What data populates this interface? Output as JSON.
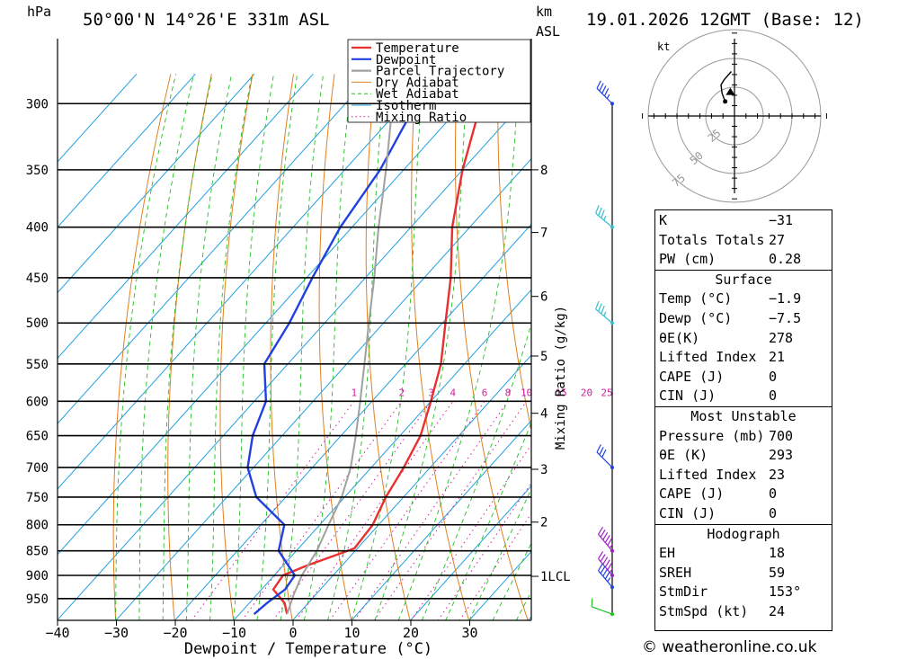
{
  "header": {
    "pressure_unit": "hPa",
    "location": "50°00'N  14°26'E  331m  ASL",
    "km_label": "km",
    "asl_label": "ASL",
    "datetime": "19.01.2026  12GMT  (Base: 12)"
  },
  "chart_data": {
    "type": "skew-t",
    "xlabel": "Dewpoint / Temperature (°C)",
    "ylabel": "hPa",
    "x_ticks": [
      -40,
      -30,
      -20,
      -10,
      0,
      10,
      20,
      30
    ],
    "x_tick_labels": [
      "−40",
      "−30",
      "−20",
      "−10",
      "0",
      "10",
      "20",
      "30"
    ],
    "pressure_levels": [
      300,
      350,
      400,
      450,
      500,
      550,
      600,
      650,
      700,
      750,
      800,
      850,
      900,
      950
    ],
    "pressure_range": [
      300,
      985
    ],
    "height_km_ticks": [
      {
        "p": 350,
        "label": "8"
      },
      {
        "p": 405,
        "label": "7"
      },
      {
        "p": 470,
        "label": "6"
      },
      {
        "p": 540,
        "label": "5"
      },
      {
        "p": 617,
        "label": "4"
      },
      {
        "p": 703,
        "label": "3"
      },
      {
        "p": 795,
        "label": "2"
      },
      {
        "p": 902,
        "label": "1LCL"
      }
    ],
    "mixing_ratio_label": "Mixing Ratio (g/kg)",
    "mixing_ratios": [
      1,
      2,
      3,
      4,
      6,
      8,
      10,
      15,
      20,
      25
    ],
    "legend": [
      "Temperature",
      "Dewpoint",
      "Parcel Trajectory",
      "Dry Adiabat",
      "Wet Adiabat",
      "Isotherm",
      "Mixing Ratio"
    ],
    "series": [
      {
        "name": "Temperature",
        "color": "#e83030",
        "points": [
          [
            300,
            -47
          ],
          [
            350,
            -40
          ],
          [
            400,
            -33
          ],
          [
            450,
            -25.5
          ],
          [
            500,
            -19.5
          ],
          [
            550,
            -14
          ],
          [
            600,
            -10
          ],
          [
            650,
            -6.5
          ],
          [
            700,
            -4.5
          ],
          [
            750,
            -3
          ],
          [
            800,
            -1
          ],
          [
            845,
            -0.5
          ],
          [
            880,
            -6
          ],
          [
            900,
            -8.5
          ],
          [
            930,
            -8
          ],
          [
            960,
            -4
          ],
          [
            985,
            -1.9
          ]
        ]
      },
      {
        "name": "Dewpoint",
        "color": "#2040e0",
        "points": [
          [
            300,
            -58
          ],
          [
            350,
            -54
          ],
          [
            400,
            -52
          ],
          [
            450,
            -49
          ],
          [
            500,
            -46
          ],
          [
            550,
            -44
          ],
          [
            600,
            -38
          ],
          [
            650,
            -35
          ],
          [
            700,
            -31
          ],
          [
            750,
            -25
          ],
          [
            800,
            -16
          ],
          [
            850,
            -13
          ],
          [
            900,
            -6.5
          ],
          [
            930,
            -6
          ],
          [
            960,
            -7
          ],
          [
            985,
            -7.5
          ]
        ]
      },
      {
        "name": "Parcel Trajectory",
        "color": "#a0a0a0",
        "points": [
          [
            300,
            -62
          ],
          [
            350,
            -53
          ],
          [
            400,
            -45.5
          ],
          [
            450,
            -38.5
          ],
          [
            500,
            -32.5
          ],
          [
            550,
            -27
          ],
          [
            600,
            -22
          ],
          [
            650,
            -17.5
          ],
          [
            700,
            -13.5
          ],
          [
            750,
            -10.5
          ],
          [
            800,
            -8.5
          ],
          [
            850,
            -6.5
          ],
          [
            900,
            -5.3
          ],
          [
            940,
            -3.8
          ],
          [
            985,
            -1.9
          ]
        ]
      }
    ],
    "hodograph": {
      "unit_label": "kt",
      "ring_labels": [
        "25",
        "50",
        "75"
      ],
      "trace": [
        [
          -9,
          14
        ],
        [
          -12,
          22
        ],
        [
          -13,
          30
        ],
        [
          -10,
          35
        ],
        [
          -3,
          43
        ]
      ],
      "storm_motion": [
        -4,
        22
      ]
    },
    "wind_barbs": [
      {
        "p": 300,
        "dir": 315,
        "spd": 45,
        "color": "#2040e0"
      },
      {
        "p": 400,
        "dir": 310,
        "spd": 35,
        "color": "#30c0d0"
      },
      {
        "p": 500,
        "dir": 310,
        "spd": 35,
        "color": "#30c0d0"
      },
      {
        "p": 700,
        "dir": 315,
        "spd": 30,
        "color": "#2040e0"
      },
      {
        "p": 850,
        "dir": 320,
        "spd": 55,
        "color": "#a020c0"
      },
      {
        "p": 900,
        "dir": 320,
        "spd": 55,
        "color": "#a020c0"
      },
      {
        "p": 925,
        "dir": 320,
        "spd": 45,
        "color": "#2040e0"
      },
      {
        "p": 985,
        "dir": 290,
        "spd": 10,
        "color": "#20c020"
      }
    ]
  },
  "indices": {
    "k_label": "K",
    "k_value": "−31",
    "tt_label": "Totals Totals",
    "tt_value": "27",
    "pw_label": "PW (cm)",
    "pw_value": "0.28"
  },
  "surface": {
    "title": "Surface",
    "rows": [
      {
        "label": "Temp (°C)",
        "value": "−1.9"
      },
      {
        "label": "Dewp (°C)",
        "value": "−7.5"
      },
      {
        "label": "θE(K)",
        "value": "278"
      },
      {
        "label": "Lifted Index",
        "value": "21"
      },
      {
        "label": "CAPE (J)",
        "value": "0"
      },
      {
        "label": "CIN (J)",
        "value": "0"
      }
    ]
  },
  "most_unstable": {
    "title": "Most Unstable",
    "rows": [
      {
        "label": "Pressure (mb)",
        "value": "700"
      },
      {
        "label": "θE (K)",
        "value": "293"
      },
      {
        "label": "Lifted Index",
        "value": "23"
      },
      {
        "label": "CAPE (J)",
        "value": "0"
      },
      {
        "label": "CIN (J)",
        "value": "0"
      }
    ]
  },
  "hodograph_table": {
    "title": "Hodograph",
    "rows": [
      {
        "label": "EH",
        "value": "18"
      },
      {
        "label": "SREH",
        "value": "59"
      },
      {
        "label": "StmDir",
        "value": "153°"
      },
      {
        "label": "StmSpd (kt)",
        "value": "24"
      }
    ]
  },
  "footer": {
    "copyright": "© weatheronline.co.uk"
  },
  "colors": {
    "temperature": "#e83030",
    "dewpoint": "#2040e0",
    "parcel": "#a0a0a0",
    "dry_adiabat": "#e08020",
    "wet_adiabat": "#20c020",
    "isotherm": "#20a0e0",
    "mixing_ratio": "#d020a0"
  }
}
